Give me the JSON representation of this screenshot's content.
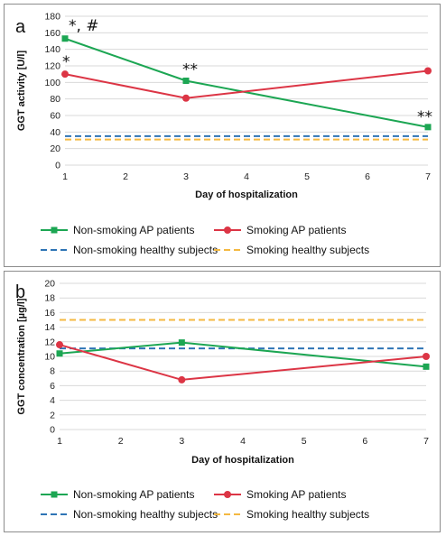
{
  "colors": {
    "nonsmoking_patients": "#1ca653",
    "smoking_patients": "#dc3545",
    "nonsmoking_healthy": "#2e74b5",
    "smoking_healthy": "#f4b942",
    "grid": "#d9d9d9"
  },
  "chart_data": [
    {
      "panel_letter": "a",
      "type": "line",
      "xlabel": "Day of hospitalization",
      "ylabel": "GGT activity [U/l]",
      "xlim": [
        1,
        7
      ],
      "ylim": [
        0,
        180
      ],
      "x_ticks": [
        "1",
        "2",
        "3",
        "4",
        "5",
        "6",
        "7"
      ],
      "y_ticks": [
        "0",
        "20",
        "40",
        "60",
        "80",
        "100",
        "120",
        "140",
        "160",
        "180"
      ],
      "grid": "horizontal",
      "legend_position": "bottom",
      "series": [
        {
          "key": "nonsmoking_patients",
          "name": "Non-smoking AP patients",
          "style": "solid-square",
          "x": [
            1,
            3,
            7
          ],
          "y": [
            153,
            102,
            46
          ]
        },
        {
          "key": "smoking_patients",
          "name": "Smoking AP patients",
          "style": "solid-circle",
          "x": [
            1,
            3,
            7
          ],
          "y": [
            110,
            81,
            114
          ]
        },
        {
          "key": "nonsmoking_healthy",
          "name": "Non-smoking healthy subjects",
          "style": "dashed",
          "x": [
            1,
            7
          ],
          "y": [
            35,
            35
          ]
        },
        {
          "key": "smoking_healthy",
          "name": "Smoking healthy subjects",
          "style": "dashed",
          "x": [
            1,
            7
          ],
          "y": [
            31,
            31
          ]
        }
      ],
      "annotations": [
        {
          "text": "*, #",
          "x": 1,
          "y": 153
        },
        {
          "text": "*",
          "x": 1,
          "y": 110
        },
        {
          "text": "**",
          "x": 3,
          "y": 102
        },
        {
          "text": "**",
          "x": 7,
          "y": 46
        }
      ]
    },
    {
      "panel_letter": "b",
      "type": "line",
      "xlabel": "Day of hospitalization",
      "ylabel": "GGT concentration [µg/l]",
      "xlim": [
        1,
        7
      ],
      "ylim": [
        0,
        20
      ],
      "x_ticks": [
        "1",
        "2",
        "3",
        "4",
        "5",
        "6",
        "7"
      ],
      "y_ticks": [
        "0",
        "2",
        "4",
        "6",
        "8",
        "10",
        "12",
        "14",
        "16",
        "18",
        "20"
      ],
      "grid": "horizontal",
      "legend_position": "bottom",
      "series": [
        {
          "key": "nonsmoking_patients",
          "name": "Non-smoking AP patients",
          "style": "solid-square",
          "x": [
            1,
            3,
            7
          ],
          "y": [
            10.4,
            11.9,
            8.6
          ]
        },
        {
          "key": "smoking_patients",
          "name": "Smoking AP patients",
          "style": "solid-circle",
          "x": [
            1,
            3,
            7
          ],
          "y": [
            11.6,
            6.8,
            10.0
          ]
        },
        {
          "key": "nonsmoking_healthy",
          "name": "Non-smoking healthy subjects",
          "style": "dashed",
          "x": [
            1,
            7
          ],
          "y": [
            11.1,
            11.1
          ]
        },
        {
          "key": "smoking_healthy",
          "name": "Smoking healthy subjects",
          "style": "dashed",
          "x": [
            1,
            7
          ],
          "y": [
            15.0,
            15.0
          ]
        }
      ],
      "annotations": []
    }
  ]
}
